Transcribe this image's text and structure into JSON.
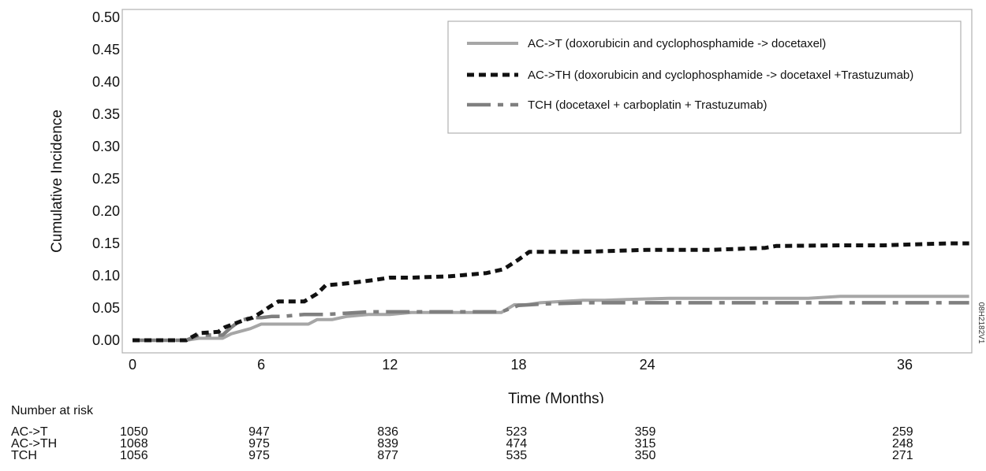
{
  "chart_data": {
    "type": "line",
    "title": "",
    "xlabel": "Time (Months)",
    "ylabel": "Cumulative Incidence",
    "xlim": [
      0,
      39
    ],
    "ylim": [
      0,
      0.5
    ],
    "xticks": [
      0,
      6,
      12,
      18,
      24,
      36
    ],
    "yticks": [
      0.0,
      0.05,
      0.1,
      0.15,
      0.2,
      0.25,
      0.3,
      0.35,
      0.4,
      0.45,
      0.5
    ],
    "grid": false,
    "legend_position": "top-right",
    "side_code": "08H2182V1",
    "series": [
      {
        "name": "AC->T (doxorubicin and cyclophosphamide -> docetaxel)",
        "color": "#a6a6a6",
        "style": "solid",
        "x": [
          0,
          2.5,
          3.1,
          4.2,
          4.6,
          5.5,
          6.0,
          6.3,
          8.2,
          8.6,
          9.3,
          10.0,
          11.0,
          12.0,
          13.0,
          15.0,
          16.0,
          17.2,
          17.8,
          18.4,
          19.0,
          20.0,
          21.0,
          22.0,
          23.0,
          25.0,
          27.0,
          30.0,
          31.5,
          33.0,
          36.0,
          38.0,
          39.0
        ],
        "y": [
          0,
          0,
          0.003,
          0.003,
          0.01,
          0.018,
          0.025,
          0.025,
          0.025,
          0.032,
          0.032,
          0.037,
          0.04,
          0.04,
          0.043,
          0.043,
          0.043,
          0.043,
          0.055,
          0.055,
          0.058,
          0.06,
          0.062,
          0.062,
          0.063,
          0.065,
          0.065,
          0.065,
          0.065,
          0.068,
          0.068,
          0.068,
          0.068
        ]
      },
      {
        "name": "AC->TH (doxorubicin and cyclophosphamide -> docetaxel +Trastuzumab)",
        "color": "#111111",
        "style": "dotted",
        "x": [
          0,
          2.5,
          3.1,
          4.0,
          4.3,
          5.1,
          5.6,
          6.0,
          6.4,
          6.8,
          8.0,
          8.6,
          9.0,
          10.0,
          11.2,
          12.0,
          13.0,
          14.8,
          16.5,
          17.3,
          18.0,
          18.5,
          19.0,
          21.0,
          24.0,
          27.0,
          29.5,
          30.0,
          33.0,
          35.0,
          36.0,
          38.0,
          39.0
        ],
        "y": [
          0,
          0,
          0.011,
          0.013,
          0.02,
          0.03,
          0.035,
          0.043,
          0.052,
          0.06,
          0.06,
          0.072,
          0.085,
          0.088,
          0.093,
          0.097,
          0.097,
          0.099,
          0.104,
          0.11,
          0.125,
          0.137,
          0.137,
          0.137,
          0.14,
          0.14,
          0.143,
          0.146,
          0.147,
          0.147,
          0.148,
          0.15,
          0.15
        ]
      },
      {
        "name": "TCH (docetaxel + carboplatin + Trastuzumab)",
        "color": "#7f7f7f",
        "style": "dashdot",
        "x": [
          0,
          2.5,
          3.1,
          4.2,
          4.6,
          5.0,
          5.5,
          6.0,
          6.5,
          7.0,
          8.0,
          9.0,
          10.0,
          11.0,
          12.0,
          14.0,
          16.0,
          17.2,
          18.0,
          19.0,
          20.0,
          21.0,
          23.0,
          25.0,
          28.0,
          31.0,
          36.0,
          38.0,
          39.0
        ],
        "y": [
          0,
          0,
          0.008,
          0.008,
          0.02,
          0.03,
          0.035,
          0.035,
          0.037,
          0.037,
          0.04,
          0.04,
          0.042,
          0.044,
          0.044,
          0.044,
          0.044,
          0.044,
          0.054,
          0.056,
          0.057,
          0.058,
          0.058,
          0.058,
          0.058,
          0.058,
          0.058,
          0.058,
          0.058
        ]
      }
    ]
  },
  "risk_table": {
    "title": "Number at risk",
    "months": [
      0,
      6,
      12,
      18,
      24,
      36
    ],
    "rows": [
      {
        "label": "AC->T",
        "values": [
          "1050",
          "947",
          "836",
          "523",
          "359",
          "259"
        ]
      },
      {
        "label": "AC->TH",
        "values": [
          "1068",
          "975",
          "839",
          "474",
          "315",
          "248"
        ]
      },
      {
        "label": "TCH",
        "values": [
          "1056",
          "975",
          "877",
          "535",
          "350",
          "271"
        ]
      }
    ]
  }
}
